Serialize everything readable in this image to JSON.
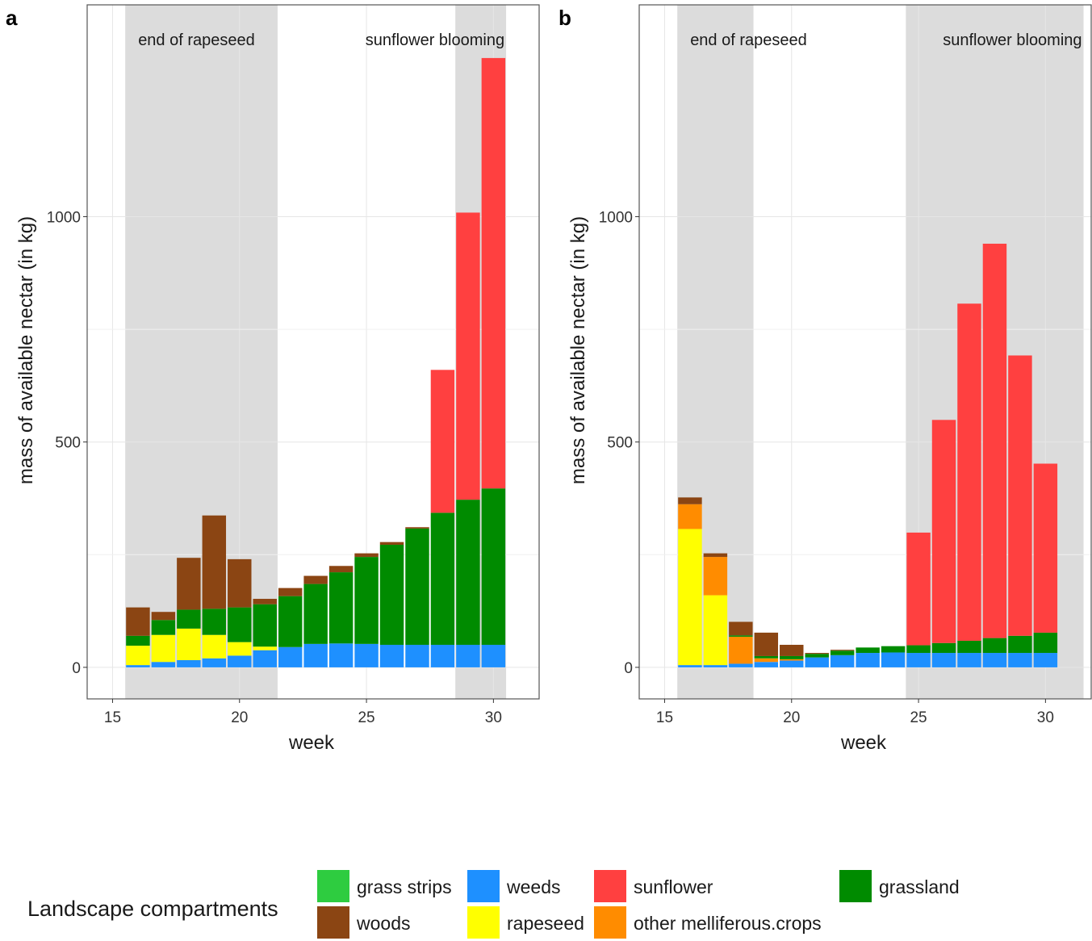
{
  "figure": {
    "legend": {
      "title": "Landscape compartments",
      "items": [
        {
          "key": "grass_strips",
          "label": "grass strips",
          "color": "#2ecc40"
        },
        {
          "key": "woods",
          "label": "woods",
          "color": "#8b4513"
        },
        {
          "key": "weeds",
          "label": "weeds",
          "color": "#1e90ff"
        },
        {
          "key": "rapeseed",
          "label": "rapeseed",
          "color": "#ffff00"
        },
        {
          "key": "sunflower",
          "label": "sunflower",
          "color": "#ff4040"
        },
        {
          "key": "other",
          "label": "other melliferous.crops",
          "color": "#ff8c00"
        },
        {
          "key": "grassland",
          "label": "grassland",
          "color": "#008b00"
        }
      ]
    }
  },
  "chart_data": [
    {
      "panel": "a",
      "type": "bar",
      "stacked": true,
      "xlabel": "week",
      "ylabel": "mass of available nectar (in kg)",
      "xlim": [
        14,
        31.8
      ],
      "xticks": [
        15,
        20,
        25,
        30
      ],
      "ylim": [
        -70,
        1470
      ],
      "yticks": [
        0,
        500,
        1000
      ],
      "grid": true,
      "legend_position": "bottom",
      "shaded_regions": [
        {
          "label": "end of rapeseed",
          "x_start": 15.5,
          "x_end": 21.5
        },
        {
          "label": "sunflower blooming",
          "x_start": 28.5,
          "x_end": 30.5
        }
      ],
      "weeks": [
        16,
        17,
        18,
        19,
        20,
        21,
        22,
        23,
        24,
        25,
        26,
        27,
        28,
        29,
        30
      ],
      "stack_order": [
        "weeds",
        "rapeseed",
        "other",
        "grass_strips",
        "grassland",
        "sunflower",
        "woods"
      ],
      "series": [
        {
          "key": "weeds",
          "name": "weeds",
          "values": [
            5,
            12,
            16,
            20,
            26,
            38,
            45,
            52,
            53,
            52,
            50,
            50,
            50,
            50,
            50
          ]
        },
        {
          "key": "rapeseed",
          "name": "rapeseed",
          "values": [
            43,
            60,
            70,
            52,
            30,
            8,
            0,
            0,
            0,
            0,
            0,
            0,
            0,
            0,
            0
          ]
        },
        {
          "key": "other",
          "name": "other melliferous.crops",
          "values": [
            0,
            0,
            0,
            0,
            0,
            0,
            0,
            0,
            0,
            0,
            0,
            0,
            0,
            0,
            0
          ]
        },
        {
          "key": "grass_strips",
          "name": "grass strips",
          "values": [
            0,
            0,
            0,
            0,
            0,
            0,
            0,
            0,
            0,
            0,
            0,
            0,
            0,
            0,
            0
          ]
        },
        {
          "key": "grassland",
          "name": "grassland",
          "values": [
            22,
            33,
            42,
            58,
            77,
            94,
            113,
            133,
            158,
            193,
            222,
            258,
            293,
            322,
            347
          ]
        },
        {
          "key": "sunflower",
          "name": "sunflower",
          "values": [
            0,
            0,
            0,
            0,
            0,
            0,
            0,
            0,
            0,
            0,
            0,
            0,
            317,
            637,
            955
          ]
        },
        {
          "key": "woods",
          "name": "woods",
          "values": [
            63,
            18,
            115,
            207,
            107,
            12,
            18,
            18,
            14,
            8,
            6,
            3,
            0,
            0,
            0
          ]
        }
      ]
    },
    {
      "panel": "b",
      "type": "bar",
      "stacked": true,
      "xlabel": "week",
      "ylabel": "mass of available nectar (in kg)",
      "xlim": [
        14,
        31.8
      ],
      "xticks": [
        15,
        20,
        25,
        30
      ],
      "ylim": [
        -70,
        1470
      ],
      "yticks": [
        0,
        500,
        1000
      ],
      "grid": true,
      "legend_position": "bottom",
      "shaded_regions": [
        {
          "label": "end of rapeseed",
          "x_start": 15.5,
          "x_end": 18.5
        },
        {
          "label": "sunflower blooming",
          "x_start": 24.5,
          "x_end": 31.5
        }
      ],
      "weeks": [
        16,
        17,
        18,
        19,
        20,
        21,
        22,
        23,
        24,
        25,
        26,
        27,
        28,
        29,
        30
      ],
      "stack_order": [
        "weeds",
        "rapeseed",
        "other",
        "grass_strips",
        "grassland",
        "sunflower",
        "woods"
      ],
      "series": [
        {
          "key": "weeds",
          "name": "weeds",
          "values": [
            5,
            5,
            8,
            12,
            15,
            22,
            27,
            32,
            33,
            32,
            32,
            32,
            32,
            32,
            32
          ]
        },
        {
          "key": "rapeseed",
          "name": "rapeseed",
          "values": [
            302,
            155,
            0,
            0,
            0,
            0,
            0,
            0,
            0,
            0,
            0,
            0,
            0,
            0,
            0
          ]
        },
        {
          "key": "other",
          "name": "other melliferous.crops",
          "values": [
            55,
            85,
            60,
            8,
            3,
            0,
            0,
            0,
            0,
            0,
            0,
            0,
            0,
            0,
            0
          ]
        },
        {
          "key": "grass_strips",
          "name": "grass strips",
          "values": [
            0,
            0,
            0,
            0,
            0,
            0,
            0,
            0,
            0,
            0,
            0,
            0,
            0,
            0,
            0
          ]
        },
        {
          "key": "grassland",
          "name": "grassland",
          "values": [
            0,
            0,
            3,
            5,
            7,
            8,
            10,
            12,
            14,
            17,
            22,
            27,
            33,
            38,
            45
          ]
        },
        {
          "key": "sunflower",
          "name": "sunflower",
          "values": [
            0,
            0,
            0,
            0,
            0,
            0,
            0,
            0,
            0,
            250,
            495,
            748,
            875,
            622,
            375
          ]
        },
        {
          "key": "woods",
          "name": "woods",
          "values": [
            15,
            8,
            30,
            52,
            25,
            2,
            2,
            0,
            0,
            0,
            0,
            0,
            0,
            0,
            0
          ]
        }
      ]
    }
  ]
}
